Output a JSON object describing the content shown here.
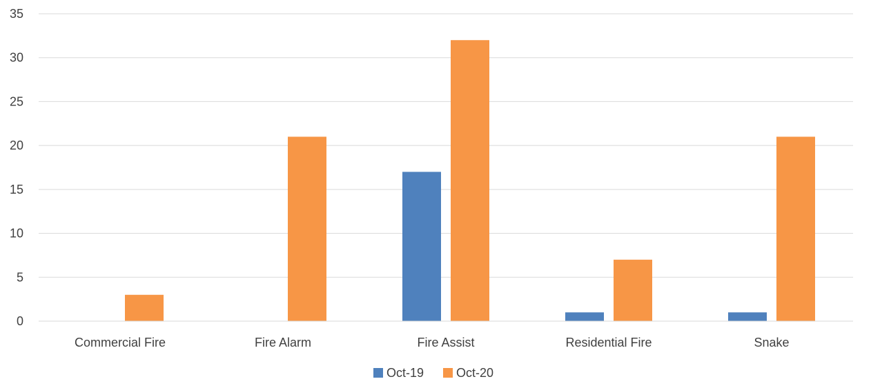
{
  "chart_data": {
    "type": "bar",
    "categories": [
      "Commercial Fire",
      "Fire Alarm",
      "Fire Assist",
      "Residential Fire",
      "Snake"
    ],
    "series": [
      {
        "name": "Oct-19",
        "color": "#4F81BD",
        "values": [
          0,
          0,
          17,
          1,
          1
        ]
      },
      {
        "name": "Oct-20",
        "color": "#F79646",
        "values": [
          3,
          21,
          32,
          7,
          21
        ]
      }
    ],
    "title": "",
    "xlabel": "",
    "ylabel": "",
    "ylim": [
      0,
      35
    ],
    "yticks": [
      0,
      5,
      10,
      15,
      20,
      25,
      30,
      35
    ],
    "grid": true,
    "gridColor": "#D9D9D9",
    "legend_position": "bottom"
  }
}
